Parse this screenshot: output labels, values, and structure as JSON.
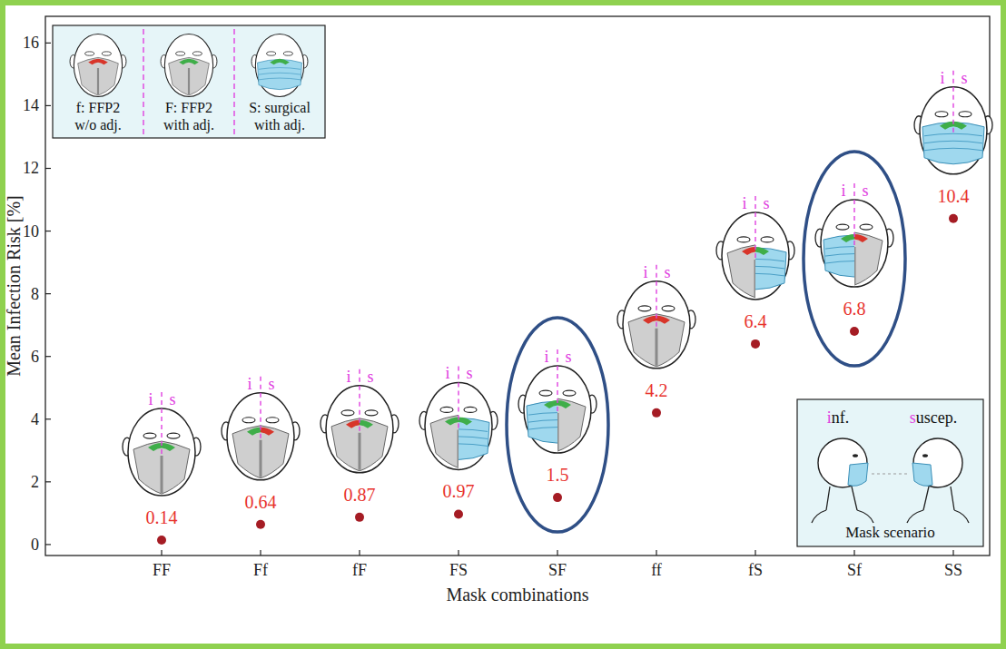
{
  "chart_data": {
    "type": "scatter",
    "x_label": "Mask combinations",
    "y_label": "Mean Infection Risk [%]",
    "categories": [
      "FF",
      "Ff",
      "fF",
      "FS",
      "SF",
      "ff",
      "fS",
      "Sf",
      "SS"
    ],
    "values": [
      0.14,
      0.64,
      0.87,
      0.97,
      1.5,
      4.2,
      6.4,
      6.8,
      10.4
    ],
    "color": "#a51c24",
    "marker": "circle",
    "data_labels": true,
    "grid": false,
    "ylim": [
      -0.35,
      16.85
    ],
    "yticks": [
      0,
      2,
      4,
      6,
      8,
      10,
      12,
      14,
      16
    ],
    "head_labels": [
      "i",
      "s"
    ],
    "mask_key": [
      {
        "lines": [
          "f: FFP2",
          "w/o adj."
        ]
      },
      {
        "lines": [
          "F: FFP2",
          "with adj."
        ]
      },
      {
        "lines": [
          "S: surgical",
          "with adj."
        ]
      }
    ],
    "scenario_key": {
      "labels": [
        "inf.",
        "suscep."
      ],
      "title": "Mask scenario"
    }
  }
}
